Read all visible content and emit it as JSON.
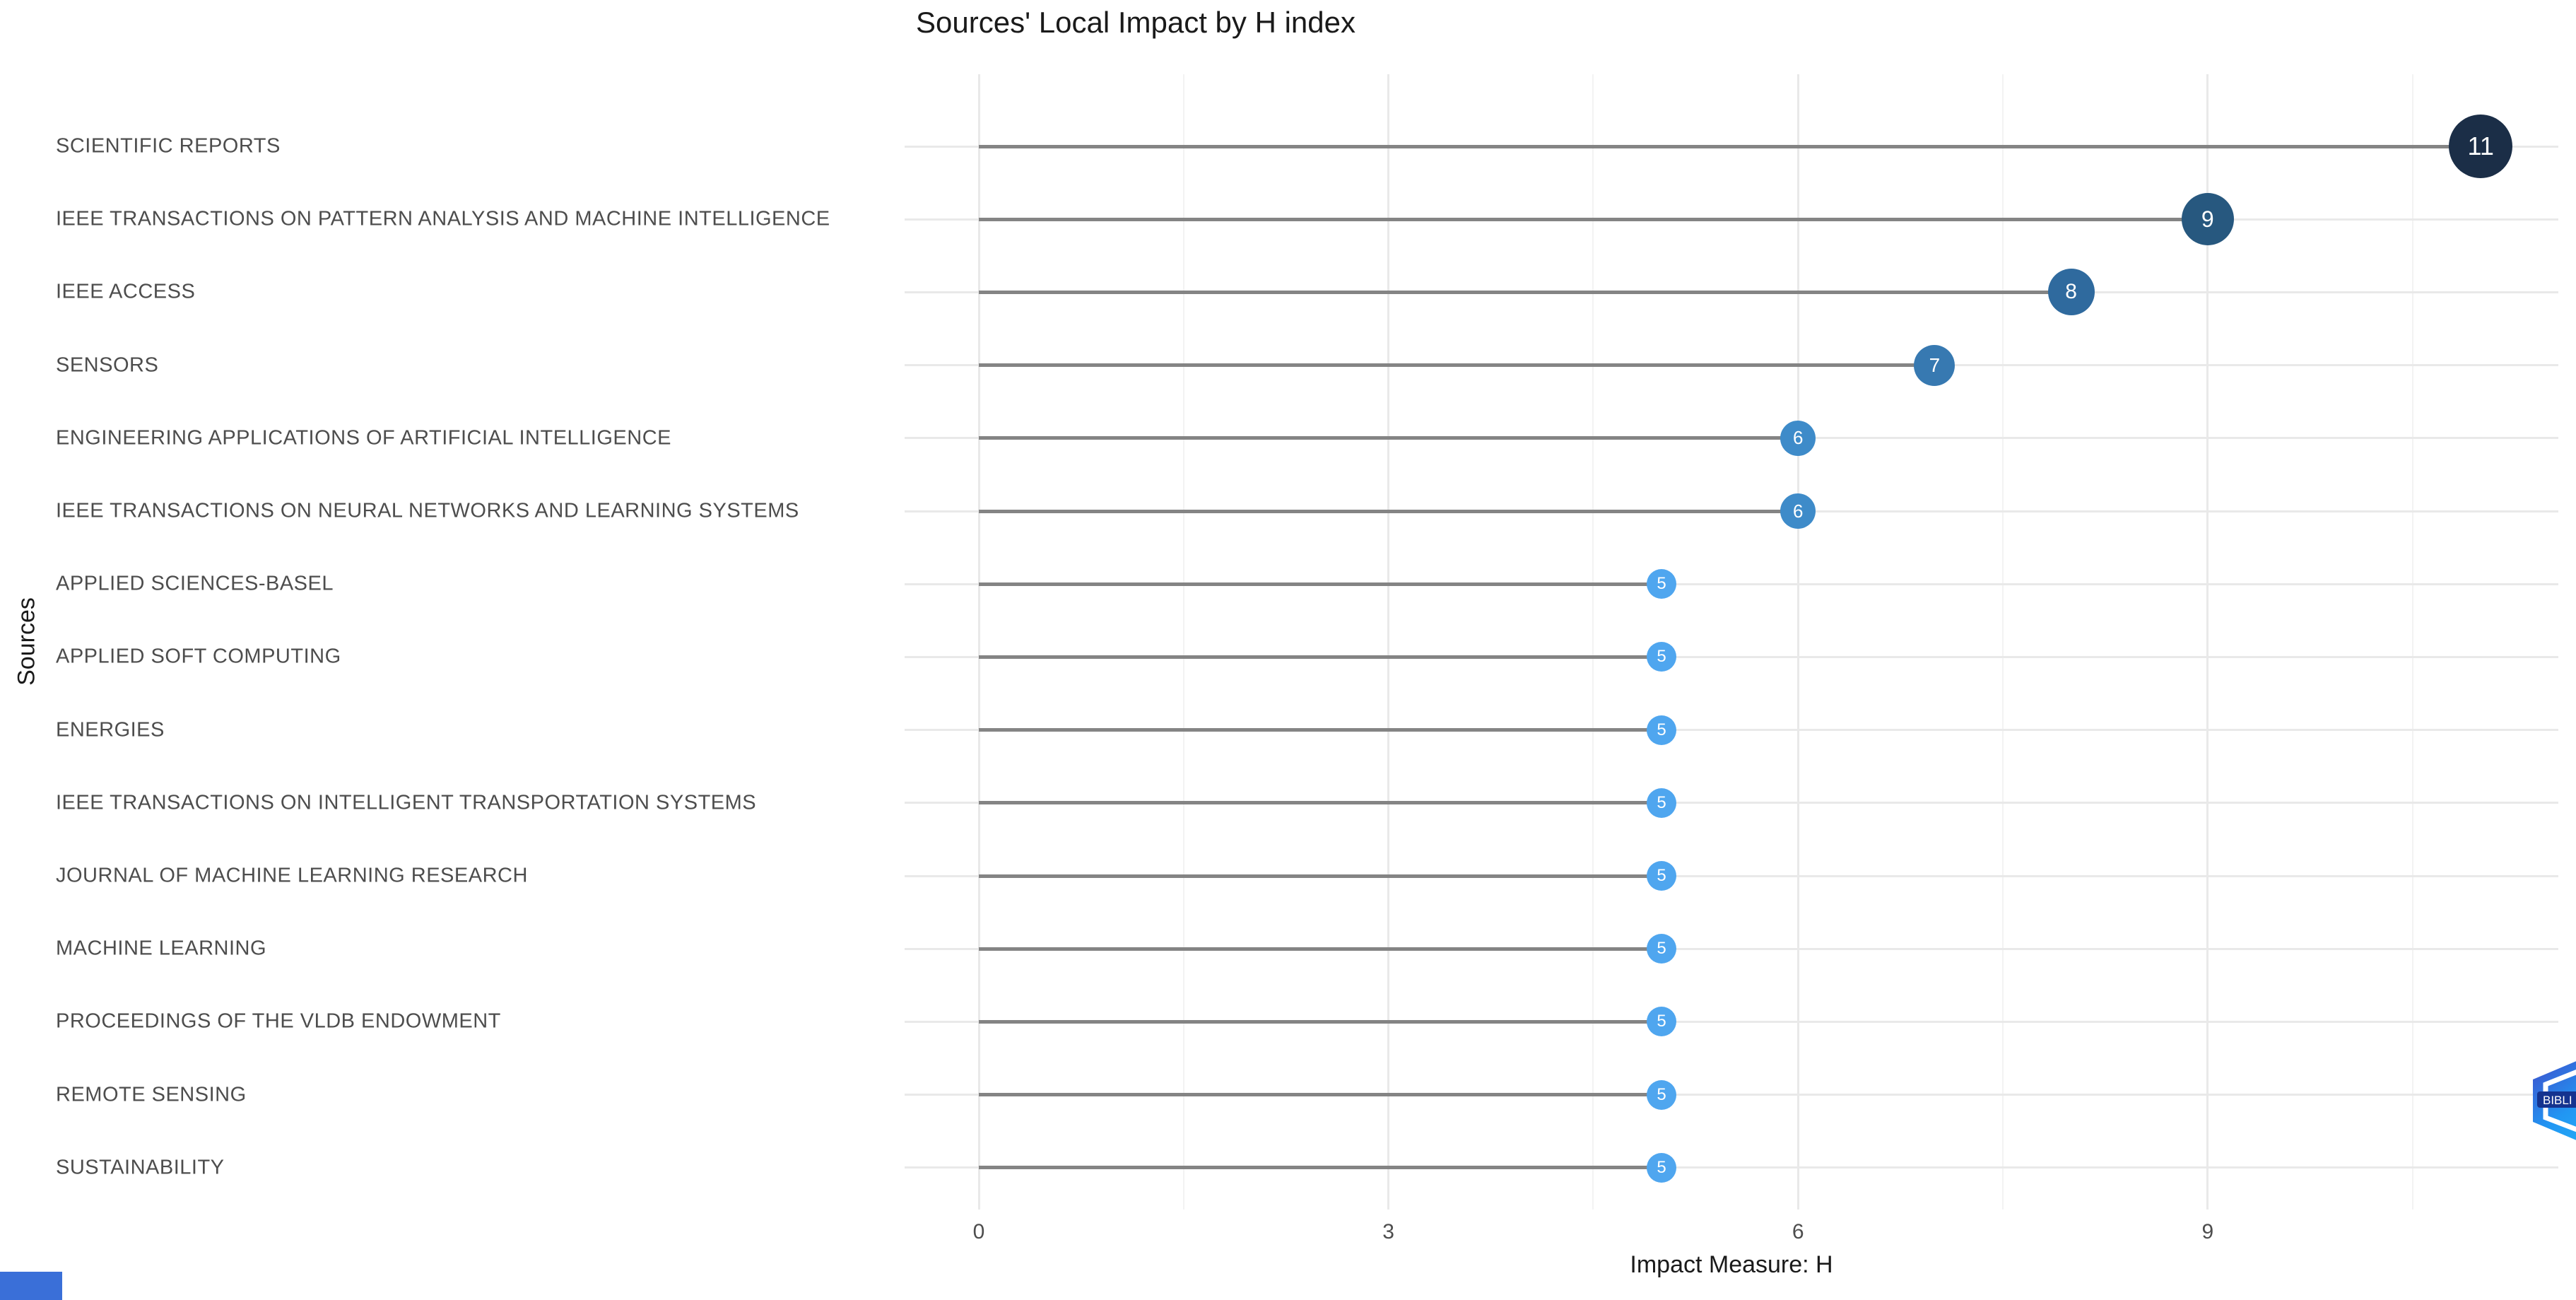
{
  "title": "Sources' Local Impact by H index",
  "y_axis_title": "Sources",
  "x_axis_title": "Impact Measure: H",
  "chart_data": {
    "type": "lollipop",
    "orientation": "horizontal",
    "title": "Sources' Local Impact by H index",
    "xlabel": "Impact Measure: H",
    "ylabel": "Sources",
    "x_ticks": [
      0,
      3,
      6,
      9
    ],
    "x_minor_gridlines": [
      1.5,
      4.5,
      7.5,
      10.5
    ],
    "xlim": [
      -0.55,
      11.55
    ],
    "grid": true,
    "legend": "none",
    "categories": [
      "SCIENTIFIC REPORTS",
      "IEEE TRANSACTIONS ON PATTERN ANALYSIS AND MACHINE INTELLIGENCE",
      "IEEE ACCESS",
      "SENSORS",
      "ENGINEERING APPLICATIONS OF ARTIFICIAL INTELLIGENCE",
      "IEEE TRANSACTIONS ON NEURAL NETWORKS AND LEARNING SYSTEMS",
      "APPLIED SCIENCES-BASEL",
      "APPLIED SOFT COMPUTING",
      "ENERGIES",
      "IEEE TRANSACTIONS ON INTELLIGENT TRANSPORTATION SYSTEMS",
      "JOURNAL OF MACHINE LEARNING RESEARCH",
      "MACHINE LEARNING",
      "PROCEEDINGS OF THE VLDB ENDOWMENT",
      "REMOTE SENSING",
      "SUSTAINABILITY"
    ],
    "values": [
      11,
      9,
      8,
      7,
      6,
      6,
      5,
      5,
      5,
      5,
      5,
      5,
      5,
      5,
      5
    ],
    "value_colors": {
      "5": "#4FA6EF",
      "6": "#3E8BC9",
      "7": "#3779B1",
      "8": "#2F6A9E",
      "9": "#27587F",
      "11": "#1B2E47"
    }
  },
  "colors": {
    "bubble_text": "#FFFFFF",
    "axis_text": "#4D4D4D",
    "title_text": "#1A1A1A",
    "stem": "#848484",
    "major_grid": "#E9E9E9",
    "minor_grid": "#F3F3F3",
    "corner_accent": "#3A6FD8",
    "logo_band": "#14338F"
  },
  "logo": {
    "name": "bibliometrix",
    "visible_text": "BIBLI"
  }
}
